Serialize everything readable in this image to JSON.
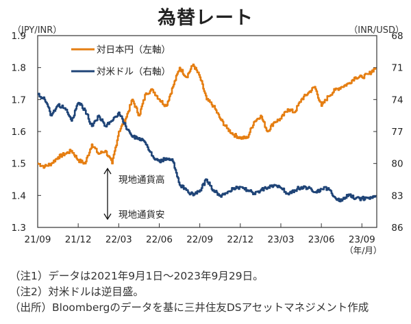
{
  "title": "為替レート",
  "notes": [
    "（注1）データは2021年9月1日～2023年9月29日。",
    "（注2）対米ドルは逆目盛。",
    "（出所）Bloombergのデータを基に三井住友DSアセットマネジメント作成"
  ],
  "chart_data": {
    "type": "line",
    "title": "為替レート",
    "xlabel": "（年/月）",
    "ylabel_left": "（JPY/INR）",
    "ylabel_right": "（INR/USD）",
    "x_ticks": [
      "21/09",
      "21/12",
      "22/03",
      "22/06",
      "22/09",
      "22/12",
      "23/03",
      "23/06",
      "23/09"
    ],
    "y_left_ticks": [
      "1.9",
      "1.8",
      "1.7",
      "1.6",
      "1.5",
      "1.4",
      "1.3"
    ],
    "y_left_range": [
      1.3,
      1.9
    ],
    "y_right_ticks": [
      "68",
      "71",
      "74",
      "77",
      "80",
      "83",
      "86"
    ],
    "y_right_range": [
      68,
      86
    ],
    "y_right_inverted": true,
    "grid": false,
    "legend_position": "top-left",
    "annotations": {
      "up_label": "現地通貨高",
      "down_label": "現地通貨安"
    },
    "x_months_from_start": [
      0,
      0.5,
      1,
      1.5,
      2,
      2.5,
      3,
      3.5,
      4,
      4.5,
      5,
      5.5,
      6,
      6.5,
      7,
      7.5,
      8,
      8.5,
      9,
      9.5,
      10,
      10.5,
      11,
      11.5,
      12,
      12.5,
      13,
      13.5,
      14,
      14.5,
      15,
      15.5,
      16,
      16.5,
      17,
      17.5,
      18,
      18.5,
      19,
      19.5,
      20,
      20.5,
      21,
      21.5,
      22,
      22.5,
      23,
      23.5,
      24,
      24.5,
      25
    ],
    "series": [
      {
        "name": "対日本円（左軸）",
        "axis": "left",
        "color": "#E57E12",
        "values": [
          1.5,
          1.49,
          1.5,
          1.52,
          1.53,
          1.54,
          1.51,
          1.5,
          1.56,
          1.53,
          1.54,
          1.5,
          1.6,
          1.64,
          1.7,
          1.65,
          1.72,
          1.73,
          1.7,
          1.68,
          1.74,
          1.8,
          1.77,
          1.81,
          1.77,
          1.7,
          1.68,
          1.64,
          1.61,
          1.59,
          1.58,
          1.58,
          1.63,
          1.65,
          1.6,
          1.63,
          1.64,
          1.67,
          1.66,
          1.7,
          1.72,
          1.74,
          1.68,
          1.71,
          1.73,
          1.74,
          1.75,
          1.77,
          1.77,
          1.78,
          1.8
        ]
      },
      {
        "name": "対米ドル（右軸）",
        "axis": "right",
        "color": "#1F4477",
        "values": [
          73.5,
          74.0,
          75.5,
          74.5,
          74.8,
          76.0,
          74.3,
          75.0,
          76.5,
          75.5,
          76.5,
          76.0,
          75.2,
          76.5,
          77.5,
          77.6,
          78.2,
          79.3,
          79.8,
          79.5,
          79.8,
          82.0,
          82.5,
          83.0,
          82.5,
          81.5,
          82.5,
          83.0,
          82.8,
          82.3,
          82.2,
          82.5,
          82.8,
          82.5,
          82.3,
          82.0,
          82.3,
          82.8,
          82.5,
          82.2,
          82.3,
          82.7,
          82.4,
          82.3,
          83.2,
          83.5,
          82.9,
          83.3,
          83.3,
          83.2,
          83.2
        ]
      }
    ]
  }
}
